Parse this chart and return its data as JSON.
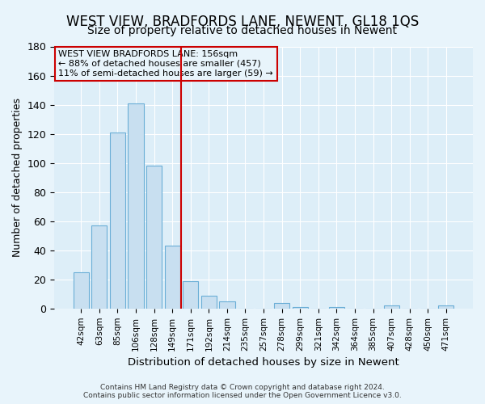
{
  "title": "WEST VIEW, BRADFORDS LANE, NEWENT, GL18 1QS",
  "subtitle": "Size of property relative to detached houses in Newent",
  "xlabel": "Distribution of detached houses by size in Newent",
  "ylabel": "Number of detached properties",
  "bar_labels": [
    "42sqm",
    "63sqm",
    "85sqm",
    "106sqm",
    "128sqm",
    "149sqm",
    "171sqm",
    "192sqm",
    "214sqm",
    "235sqm",
    "257sqm",
    "278sqm",
    "299sqm",
    "321sqm",
    "342sqm",
    "364sqm",
    "385sqm",
    "407sqm",
    "428sqm",
    "450sqm",
    "471sqm"
  ],
  "bar_values": [
    25,
    57,
    121,
    141,
    98,
    43,
    19,
    9,
    5,
    0,
    0,
    4,
    1,
    0,
    1,
    0,
    0,
    2,
    0,
    0,
    2
  ],
  "bar_color": "#c8dff0",
  "bar_edge_color": "#6aaed6",
  "vline_x": 5.5,
  "vline_color": "#cc0000",
  "ylim": [
    0,
    180
  ],
  "yticks": [
    0,
    20,
    40,
    60,
    80,
    100,
    120,
    140,
    160,
    180
  ],
  "annotation_title": "WEST VIEW BRADFORDS LANE: 156sqm",
  "annotation_line1": "← 88% of detached houses are smaller (457)",
  "annotation_line2": "11% of semi-detached houses are larger (59) →",
  "footer_line1": "Contains HM Land Registry data © Crown copyright and database right 2024.",
  "footer_line2": "Contains public sector information licensed under the Open Government Licence v3.0.",
  "bg_color": "#e8f4fb",
  "plot_bg_color": "#ddeef8",
  "title_fontsize": 12,
  "subtitle_fontsize": 10
}
